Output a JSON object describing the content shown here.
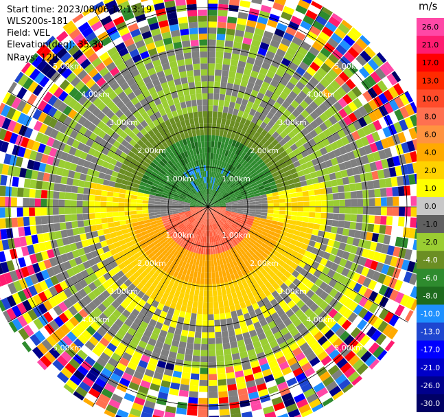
{
  "header": {
    "start_time": "Start time: 2023/08/06 12:13:19",
    "instrument": "WLS200s-181",
    "field": "Field: VEL",
    "elevation": "Elevation(deg): 35.30",
    "nrays": "NRays: 120"
  },
  "colorbar": {
    "unit": "m/s",
    "ticks": [
      "26.0",
      "21.0",
      "17.0",
      "13.0",
      "10.0",
      "8.0",
      "6.0",
      "4.0",
      "2.0",
      "1.0",
      "0.0",
      "-1.0",
      "-2.0",
      "-4.0",
      "-6.0",
      "-8.0",
      "-10.0",
      "-13.0",
      "-17.0",
      "-21.0",
      "-26.0",
      "-30.0"
    ],
    "colors": [
      "#ff48a6",
      "#ff1c70",
      "#ff0000",
      "#ff2a00",
      "#ff4b2a",
      "#ff7050",
      "#ff9340",
      "#ffaa00",
      "#ffd200",
      "#ffff00",
      "#c8c8c8",
      "#606060",
      "#9acd32",
      "#6b8e23",
      "#2e8b2e",
      "#1e6b1e",
      "#1e90ff",
      "#1e46d0",
      "#0000ff",
      "#0000c8",
      "#00008b",
      "#000064"
    ]
  },
  "chart_data": {
    "type": "ppi",
    "field": "VEL",
    "units": "m/s",
    "vmin": -30.0,
    "vmax": 26.0,
    "nrays": 120,
    "range_rings_km": [
      1.0,
      2.0,
      3.0,
      4.0,
      5.0
    ],
    "ring_labels": [
      "1.00km",
      "2.00km",
      "3.00km",
      "4.00km",
      "5.00km"
    ],
    "azimuth_lines_deg": [
      0,
      30,
      60,
      90,
      120,
      150,
      180,
      210,
      240,
      270,
      300,
      330
    ],
    "max_range_km": 5.8
  }
}
